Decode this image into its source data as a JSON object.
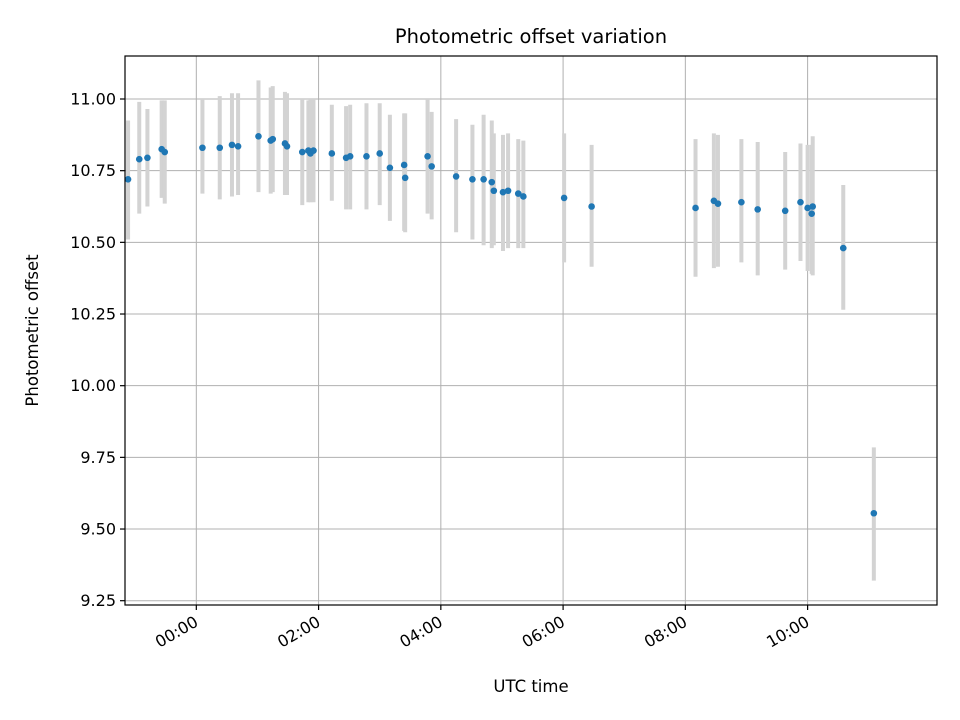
{
  "chart_data": {
    "type": "scatter",
    "title": "Photometric offset variation",
    "xlabel": "UTC time",
    "ylabel": "Photometric offset",
    "x_unit": "UTC time (HH:MM)",
    "xlim": [
      "-01:10",
      "12:07"
    ],
    "ylim": [
      9.235,
      11.15
    ],
    "x_ticks": [
      "00:00",
      "02:00",
      "04:00",
      "06:00",
      "08:00",
      "10:00"
    ],
    "y_ticks": [
      9.25,
      9.5,
      9.75,
      10.0,
      10.25,
      10.5,
      10.75,
      11.0
    ],
    "y_tick_labels": [
      "9.25",
      "9.50",
      "9.75",
      "10.00",
      "10.25",
      "10.50",
      "10.75",
      "11.00"
    ],
    "grid": true,
    "colors": {
      "point": "#1f77b4",
      "errorbar": "#d3d3d3"
    },
    "series": [
      {
        "x": [
          "-01:07",
          "-00:56",
          "-00:48",
          "-00:34",
          "-00:31",
          "00:06",
          "00:23",
          "00:35",
          "00:41",
          "01:01",
          "01:13",
          "01:15",
          "01:27",
          "01:29",
          "01:44",
          "01:50",
          "01:52",
          "01:55",
          "02:13",
          "02:27",
          "02:31",
          "02:47",
          "03:00",
          "03:10",
          "03:24",
          "03:25",
          "03:47",
          "03:51",
          "04:15",
          "04:31",
          "04:42",
          "04:50",
          "04:52",
          "05:01",
          "05:06",
          "05:16",
          "05:21",
          "06:01",
          "06:28",
          "08:10",
          "08:28",
          "08:32",
          "08:55",
          "09:11",
          "09:38",
          "09:53",
          "10:00",
          "10:04",
          "10:05",
          "10:35",
          "11:05"
        ],
        "y": [
          10.72,
          10.79,
          10.795,
          10.825,
          10.815,
          10.83,
          10.83,
          10.84,
          10.835,
          10.87,
          10.855,
          10.86,
          10.845,
          10.835,
          10.815,
          10.82,
          10.81,
          10.82,
          10.81,
          10.795,
          10.8,
          10.8,
          10.81,
          10.76,
          10.77,
          10.725,
          10.8,
          10.765,
          10.73,
          10.72,
          10.72,
          10.71,
          10.68,
          10.675,
          10.68,
          10.67,
          10.66,
          10.655,
          10.625,
          10.62,
          10.645,
          10.635,
          10.64,
          10.615,
          10.61,
          10.64,
          10.62,
          10.6,
          10.625,
          10.48,
          9.555
        ],
        "yerr_low": [
          0.21,
          0.19,
          0.17,
          0.17,
          0.18,
          0.16,
          0.18,
          0.18,
          0.17,
          0.195,
          0.185,
          0.185,
          0.18,
          0.17,
          0.185,
          0.18,
          0.17,
          0.18,
          0.165,
          0.18,
          0.185,
          0.185,
          0.18,
          0.185,
          0.23,
          0.19,
          0.2,
          0.185,
          0.195,
          0.21,
          0.23,
          0.23,
          0.19,
          0.205,
          0.2,
          0.19,
          0.18,
          0.225,
          0.21,
          0.24,
          0.235,
          0.22,
          0.21,
          0.23,
          0.205,
          0.205,
          0.22,
          0.21,
          0.24,
          0.215,
          0.235
        ],
        "yerr_high": [
          0.205,
          0.2,
          0.17,
          0.17,
          0.18,
          0.17,
          0.18,
          0.18,
          0.185,
          0.195,
          0.185,
          0.185,
          0.18,
          0.185,
          0.185,
          0.175,
          0.19,
          0.18,
          0.17,
          0.18,
          0.18,
          0.185,
          0.175,
          0.185,
          0.18,
          0.225,
          0.2,
          0.19,
          0.2,
          0.19,
          0.225,
          0.215,
          0.2,
          0.2,
          0.2,
          0.19,
          0.195,
          0.225,
          0.215,
          0.24,
          0.235,
          0.24,
          0.22,
          0.235,
          0.205,
          0.205,
          0.22,
          0.24,
          0.245,
          0.22,
          0.23
        ]
      }
    ]
  }
}
